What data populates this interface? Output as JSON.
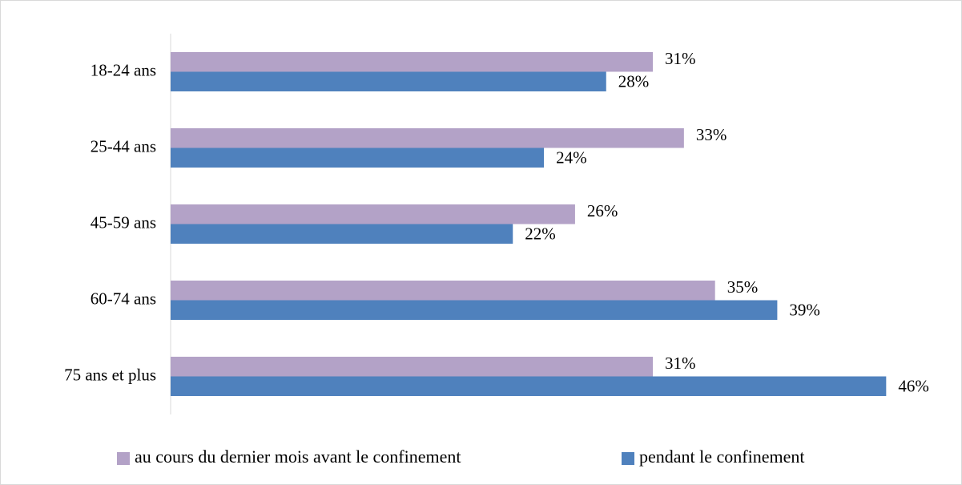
{
  "chart_data": {
    "type": "hbar",
    "categories": [
      "18-24 ans",
      "25-44 ans",
      "45-59 ans",
      "60-74 ans",
      "75 ans et plus"
    ],
    "series": [
      {
        "name": "au cours du dernier mois avant le confinement",
        "color": "#b3a2c7",
        "values": [
          31,
          33,
          26,
          35,
          31
        ],
        "value_labels": [
          "31%",
          "33%",
          "26%",
          "35%",
          "31%"
        ]
      },
      {
        "name": "pendant le confinement",
        "color": "#4f81bd",
        "values": [
          28,
          24,
          22,
          39,
          46
        ],
        "value_labels": [
          "28%",
          "24%",
          "22%",
          "39%",
          "46%"
        ]
      }
    ],
    "xlim": [
      0,
      50
    ],
    "legend": "bottom"
  }
}
